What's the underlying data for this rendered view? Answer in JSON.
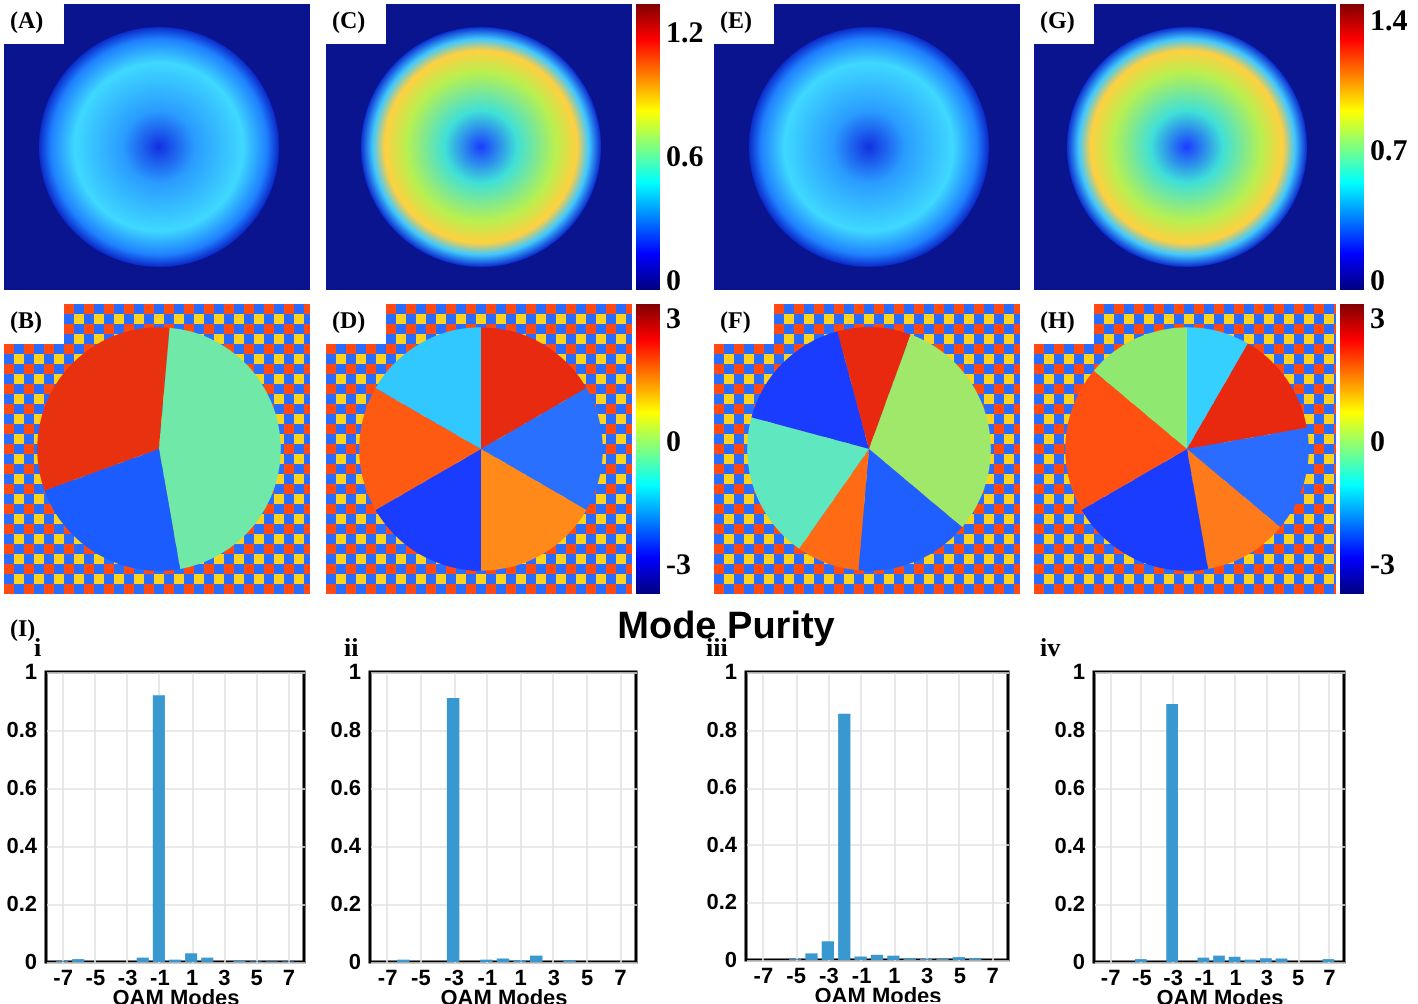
{
  "chart_data": [
    {
      "type": "other",
      "title": "(A)"
    },
    {
      "type": "other",
      "title": "(C)",
      "annotations": [
        "1.2",
        "0.6",
        "0"
      ]
    },
    {
      "type": "other",
      "title": "(E)"
    },
    {
      "type": "other",
      "title": "(G)",
      "annotations": [
        "1.4",
        "0.7",
        "0"
      ]
    },
    {
      "type": "other",
      "title": "(B)"
    },
    {
      "type": "other",
      "title": "(D)",
      "annotations": [
        "3",
        "0",
        "-3"
      ]
    },
    {
      "type": "other",
      "title": "(F)"
    },
    {
      "type": "other",
      "title": "(H)",
      "annotations": [
        "3",
        "0",
        "-3"
      ]
    },
    {
      "type": "other",
      "title": "Mode Purity",
      "annotations": [
        "(I)"
      ]
    },
    {
      "type": "bar",
      "title": "i",
      "x": [
        -7,
        -6,
        -5,
        -4,
        -3,
        -2,
        -1,
        0,
        1,
        2,
        3,
        4,
        5,
        6,
        7
      ],
      "values": [
        0.003,
        0.01,
        0,
        0,
        0,
        0.015,
        0.92,
        0.008,
        0.03,
        0.015,
        0,
        0.004,
        0.002,
        0.002,
        0.002
      ],
      "color": "#3a98d0",
      "xlim": [
        -8,
        8
      ],
      "ylim": [
        0,
        1
      ],
      "xticks": [
        -7,
        -5,
        -3,
        -1,
        1,
        3,
        5,
        7
      ],
      "yticks": [
        0,
        0.2,
        0.4,
        0.6,
        0.8,
        1
      ],
      "xlabel": "OAM Modes",
      "grid": true
    },
    {
      "type": "bar",
      "title": "ii",
      "x": [
        -7,
        -6,
        -5,
        -4,
        -3,
        -2,
        -1,
        0,
        1,
        2,
        3,
        4,
        5,
        6,
        7
      ],
      "values": [
        0,
        0.008,
        0,
        0,
        0.91,
        0,
        0.008,
        0.012,
        0.005,
        0.022,
        0,
        0.005,
        0,
        0,
        0
      ],
      "color": "#3a98d0",
      "xlim": [
        -8,
        8
      ],
      "ylim": [
        0,
        1
      ],
      "xticks": [
        -7,
        -5,
        -3,
        -1,
        1,
        3,
        5,
        7
      ],
      "yticks": [
        0,
        0.2,
        0.4,
        0.6,
        0.8,
        1
      ],
      "xlabel": "OAM Modes",
      "grid": true
    },
    {
      "type": "bar",
      "title": "iii",
      "x": [
        -7,
        -6,
        -5,
        -4,
        -3,
        -2,
        -1,
        0,
        1,
        2,
        3,
        4,
        5,
        6,
        7
      ],
      "values": [
        0,
        0,
        0.003,
        0.023,
        0.065,
        0.855,
        0.012,
        0.018,
        0.015,
        0.005,
        0.004,
        0.004,
        0.01,
        0.005,
        0
      ],
      "color": "#3a98d0",
      "xlim": [
        -8,
        8
      ],
      "ylim": [
        0,
        1
      ],
      "xticks": [
        -7,
        -5,
        -3,
        -1,
        1,
        3,
        5,
        7
      ],
      "yticks": [
        0,
        0.2,
        0.4,
        0.6,
        0.8,
        1
      ],
      "xlabel": "OAM Modes",
      "grid": true
    },
    {
      "type": "bar",
      "title": "iv",
      "x": [
        -7,
        -6,
        -5,
        -4,
        -3,
        -2,
        -1,
        0,
        1,
        2,
        3,
        4,
        5,
        6,
        7
      ],
      "values": [
        0,
        0,
        0.01,
        0,
        0.89,
        0,
        0.015,
        0.022,
        0.018,
        0.008,
        0.013,
        0.012,
        0,
        0,
        0.01
      ],
      "color": "#3a98d0",
      "xlim": [
        -8,
        8
      ],
      "ylim": [
        0,
        1
      ],
      "xticks": [
        -7,
        -5,
        -3,
        -1,
        1,
        3,
        5,
        7
      ],
      "yticks": [
        0,
        0.2,
        0.4,
        0.6,
        0.8,
        1
      ],
      "xlabel": "OAM Modes",
      "grid": true
    }
  ]
}
